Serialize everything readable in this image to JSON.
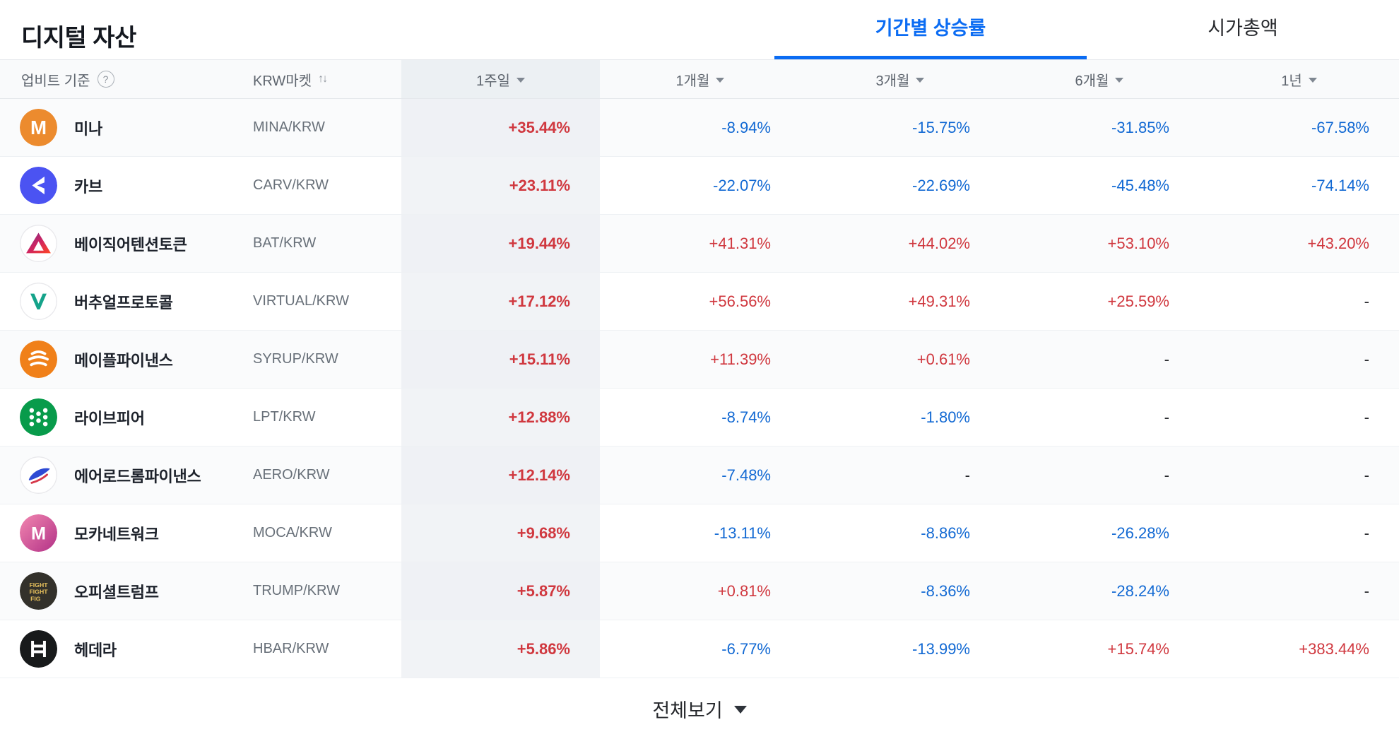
{
  "page": {
    "title": "디지털 자산",
    "tabs": [
      {
        "label": "기간별 상승률",
        "active": true
      },
      {
        "label": "시가총액",
        "active": false
      }
    ],
    "footer": {
      "view_all_label": "전체보기"
    }
  },
  "table": {
    "header": {
      "basis_label": "업비트 기준",
      "help_icon": "question-mark",
      "market_label": "KRW마켓",
      "sort_icon": "up-down-arrows",
      "periods": [
        "1주일",
        "1개월",
        "3개월",
        "6개월",
        "1년"
      ]
    },
    "rows": [
      {
        "name": "미나",
        "code": "MINA/KRW",
        "icon": "mina-icon",
        "values": [
          "+35.44%",
          "-8.94%",
          "-15.75%",
          "-31.85%",
          "-67.58%"
        ]
      },
      {
        "name": "카브",
        "code": "CARV/KRW",
        "icon": "carv-icon",
        "values": [
          "+23.11%",
          "-22.07%",
          "-22.69%",
          "-45.48%",
          "-74.14%"
        ]
      },
      {
        "name": "베이직어텐션토큰",
        "code": "BAT/KRW",
        "icon": "bat-icon",
        "values": [
          "+19.44%",
          "+41.31%",
          "+44.02%",
          "+53.10%",
          "+43.20%"
        ]
      },
      {
        "name": "버추얼프로토콜",
        "code": "VIRTUAL/KRW",
        "icon": "virtual-icon",
        "values": [
          "+17.12%",
          "+56.56%",
          "+49.31%",
          "+25.59%",
          "-"
        ]
      },
      {
        "name": "메이플파이낸스",
        "code": "SYRUP/KRW",
        "icon": "syrup-icon",
        "values": [
          "+15.11%",
          "+11.39%",
          "+0.61%",
          "-",
          "-"
        ]
      },
      {
        "name": "라이브피어",
        "code": "LPT/KRW",
        "icon": "livepeer-icon",
        "values": [
          "+12.88%",
          "-8.74%",
          "-1.80%",
          "-",
          "-"
        ]
      },
      {
        "name": "에어로드롬파이낸스",
        "code": "AERO/KRW",
        "icon": "aero-icon",
        "values": [
          "+12.14%",
          "-7.48%",
          "-",
          "-",
          "-"
        ]
      },
      {
        "name": "모카네트워크",
        "code": "MOCA/KRW",
        "icon": "moca-icon",
        "values": [
          "+9.68%",
          "-13.11%",
          "-8.86%",
          "-26.28%",
          "-"
        ]
      },
      {
        "name": "오피셜트럼프",
        "code": "TRUMP/KRW",
        "icon": "trump-icon",
        "values": [
          "+5.87%",
          "+0.81%",
          "-8.36%",
          "-28.24%",
          "-"
        ]
      },
      {
        "name": "헤데라",
        "code": "HBAR/KRW",
        "icon": "hbar-icon",
        "values": [
          "+5.86%",
          "-6.77%",
          "-13.99%",
          "+15.74%",
          "+383.44%"
        ]
      }
    ]
  },
  "colors": {
    "up": "#d0383f",
    "down": "#1269d3",
    "accent": "#0b6cf3",
    "neutral": "#26282c"
  }
}
